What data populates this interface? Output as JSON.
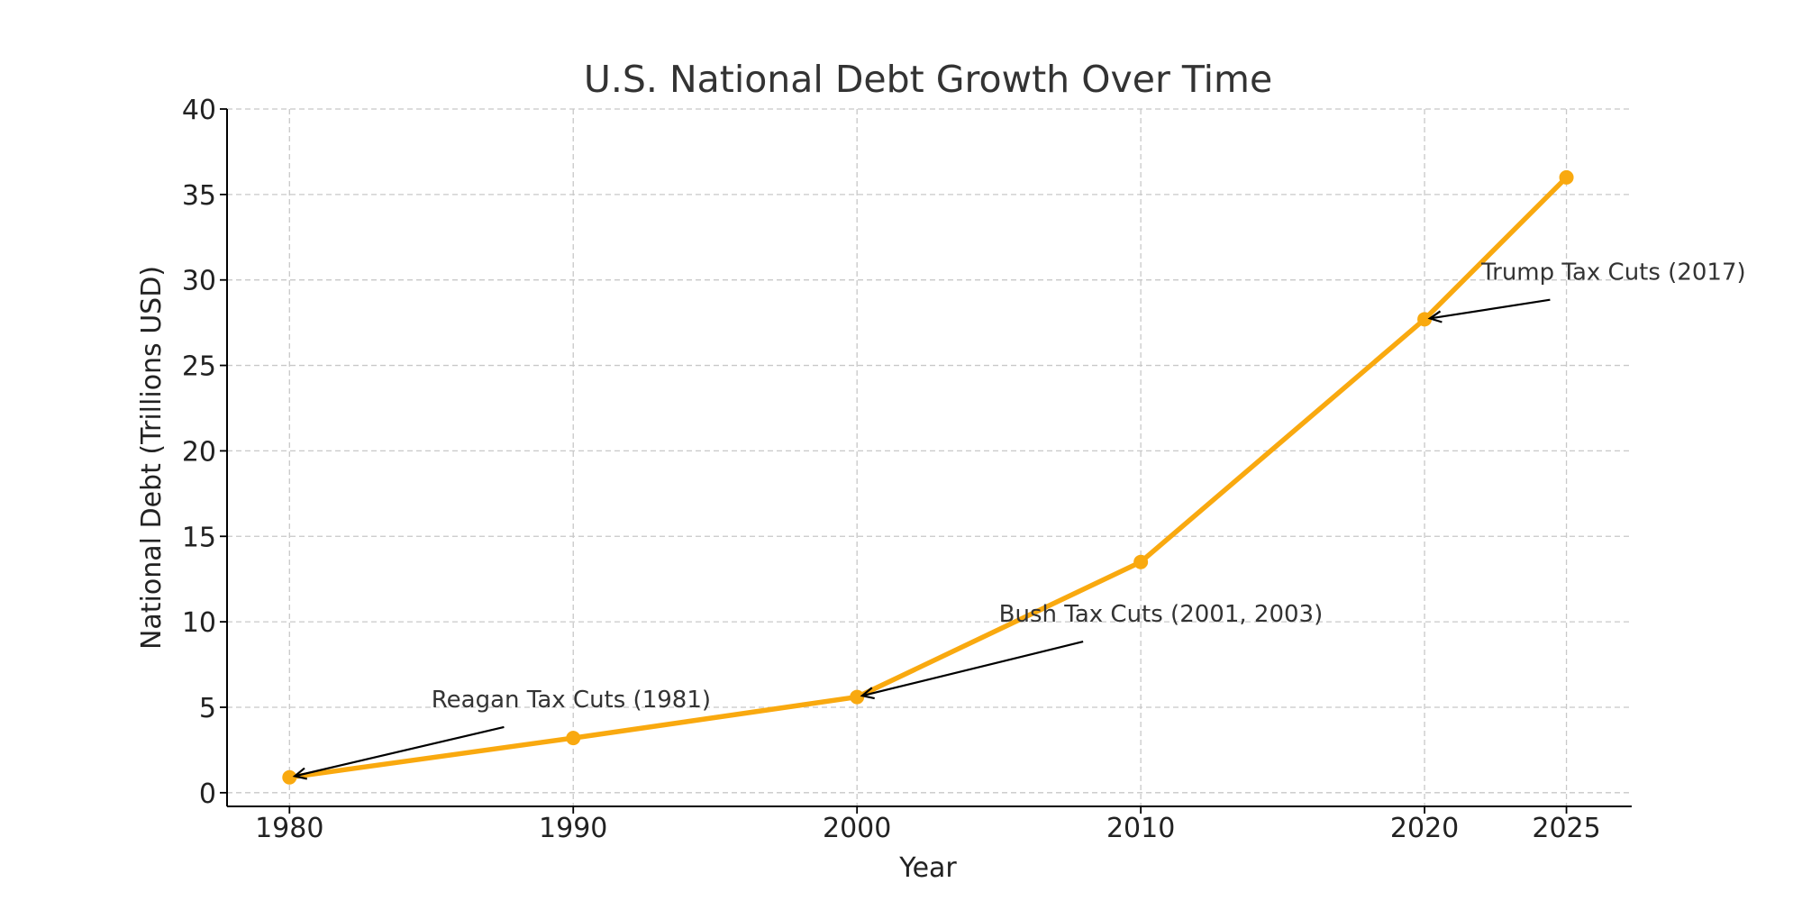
{
  "chart_data": {
    "type": "line",
    "title": "U.S. National Debt Growth Over Time",
    "xlabel": "Year",
    "ylabel": "National Debt (Trillions USD)",
    "x_ticks": [
      "1980",
      "1990",
      "2000",
      "2010",
      "2020",
      "2025"
    ],
    "y_ticks": [
      "0",
      "5",
      "10",
      "15",
      "20",
      "25",
      "30",
      "35",
      "40"
    ],
    "xlim": [
      1977.8,
      2027.3
    ],
    "ylim": [
      -0.8,
      40
    ],
    "grid": true,
    "series": [
      {
        "color": "#F9A90F",
        "marker": "circle",
        "x": [
          1980,
          1990,
          2000,
          2010,
          2020,
          2025
        ],
        "y": [
          0.9,
          3.2,
          5.6,
          13.5,
          27.7,
          36.0
        ]
      }
    ],
    "annotations": [
      {
        "text": "Reagan Tax Cuts (1981)",
        "point": [
          1980,
          0.9
        ],
        "text_at": [
          1985,
          5.0
        ]
      },
      {
        "text": "Bush Tax Cuts (2001, 2003)",
        "point": [
          2000,
          5.6
        ],
        "text_at": [
          2005,
          10.0
        ]
      },
      {
        "text": "Trump Tax Cuts (2017)",
        "point": [
          2020,
          27.7
        ],
        "text_at": [
          2022,
          30.0
        ]
      }
    ]
  }
}
